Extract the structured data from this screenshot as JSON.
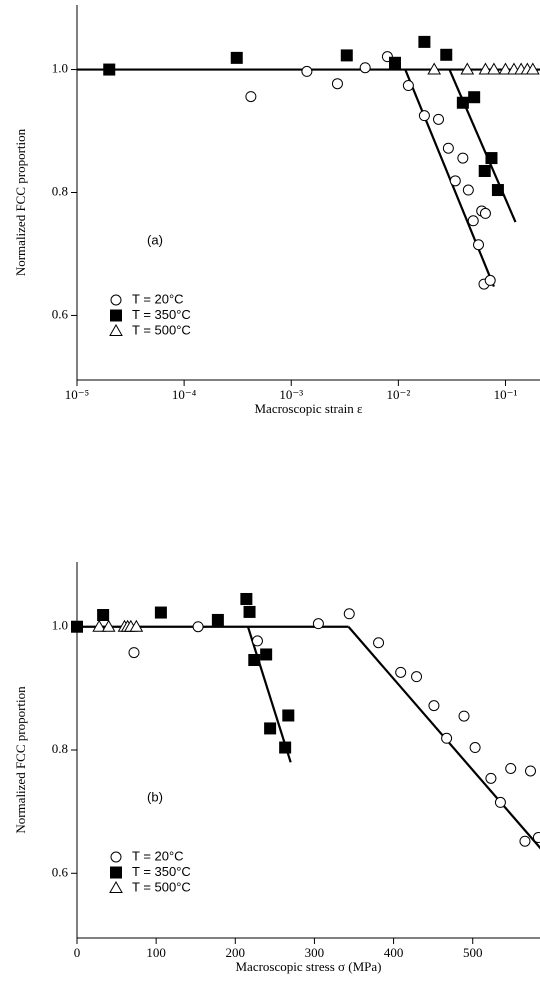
{
  "chart_data": [
    {
      "type": "scatter",
      "xscale": "log",
      "annotation": "(a)",
      "xlabel": "Macroscopic strain ε",
      "ylabel": "Normalized FCC proportion",
      "xlim": [
        1e-05,
        0.21
      ],
      "ylim": [
        0.495,
        1.105
      ],
      "xticks": [
        {
          "value": 1e-05,
          "label": "10⁻⁵"
        },
        {
          "value": 0.0001,
          "label": "10⁻⁴"
        },
        {
          "value": 0.001,
          "label": "10⁻³"
        },
        {
          "value": 0.01,
          "label": "10⁻²"
        },
        {
          "value": 0.1,
          "label": "10⁻¹"
        }
      ],
      "yticks": [
        0.6,
        0.8,
        {
          "value": 1.0,
          "label": "1.0"
        }
      ],
      "legend": "lower left",
      "series": [
        {
          "name": "T = 20°C",
          "marker": "circle",
          "color": "#000000",
          "fill": "#ffffff",
          "x": [
            0.00042,
            0.0014,
            0.0027,
            0.0049,
            0.0079,
            0.0124,
            0.0175,
            0.0237,
            0.0293,
            0.034,
            0.04,
            0.045,
            0.05,
            0.056,
            0.06,
            0.065,
            0.063,
            0.072
          ],
          "values": [
            0.956,
            0.997,
            0.977,
            1.003,
            1.021,
            0.974,
            0.925,
            0.919,
            0.872,
            0.819,
            0.856,
            0.804,
            0.754,
            0.715,
            0.77,
            0.766,
            0.651,
            0.657
          ]
        },
        {
          "name": "T = 350°C",
          "marker": "square",
          "color": "#000000",
          "fill": "#000000",
          "x": [
            2e-05,
            0.00031,
            0.0033,
            0.0093,
            0.0175,
            0.028,
            0.04,
            0.051,
            0.064,
            0.074,
            0.085
          ],
          "values": [
            1.0,
            1.019,
            1.023,
            1.011,
            1.045,
            1.024,
            0.946,
            0.955,
            0.835,
            0.856,
            0.804
          ]
        },
        {
          "name": "T = 500°C",
          "marker": "triangle",
          "color": "#000000",
          "fill": "#ffffff",
          "x": [
            0.0216,
            0.044,
            0.065,
            0.078,
            0.1,
            0.12,
            0.14,
            0.16,
            0.18
          ],
          "values": [
            1.0,
            1.0,
            1.0,
            1.0,
            1.0,
            1.0,
            1.0,
            1.0,
            1.0
          ]
        }
      ],
      "fits": [
        {
          "x": [
            1e-05,
            0.21
          ],
          "values": [
            1.0,
            1.0
          ]
        },
        {
          "x": [
            0.0116,
            0.078
          ],
          "values": [
            1.0,
            0.647
          ]
        },
        {
          "x": [
            0.03,
            0.124
          ],
          "values": [
            1.0,
            0.752
          ]
        }
      ]
    },
    {
      "type": "scatter",
      "xscale": "linear",
      "annotation": "(b)",
      "xlabel": "Macroscopic stress σ (MPa)",
      "ylabel": "Normalized FCC proportion",
      "xlim": [
        0,
        585
      ],
      "ylim": [
        0.495,
        1.105
      ],
      "xticks": [
        0,
        100,
        200,
        300,
        400,
        500
      ],
      "yticks": [
        0.6,
        0.8,
        {
          "value": 1.0,
          "label": "1.0"
        }
      ],
      "legend": "lower left",
      "series": [
        {
          "name": "T = 20°C",
          "marker": "circle",
          "color": "#000000",
          "fill": "#ffffff",
          "x": [
            72,
            153,
            228,
            305,
            344,
            381,
            409,
            429,
            451,
            467,
            489,
            503,
            523,
            535,
            548,
            573,
            566,
            583
          ],
          "values": [
            0.958,
            1.0,
            0.977,
            1.005,
            1.021,
            0.974,
            0.926,
            0.919,
            0.872,
            0.819,
            0.855,
            0.804,
            0.754,
            0.715,
            0.77,
            0.766,
            0.652,
            0.658
          ]
        },
        {
          "name": "T = 350°C",
          "marker": "square",
          "color": "#000000",
          "fill": "#000000",
          "x": [
            0,
            33,
            106,
            178,
            214,
            218,
            224,
            239,
            244,
            267,
            263
          ],
          "values": [
            1.0,
            1.019,
            1.023,
            1.011,
            1.045,
            1.024,
            0.946,
            0.955,
            0.835,
            0.856,
            0.804
          ]
        },
        {
          "name": "T = 500°C",
          "marker": "triangle",
          "color": "#000000",
          "fill": "#ffffff",
          "x": [
            28,
            40,
            60,
            64,
            68,
            75
          ],
          "values": [
            1.0,
            1.0,
            1.0,
            1.0,
            1.0,
            1.0
          ]
        }
      ],
      "fits": [
        {
          "x": [
            0,
            343
          ],
          "values": [
            1.0,
            1.0
          ]
        },
        {
          "x": [
            343,
            586
          ],
          "values": [
            1.0,
            0.64
          ]
        },
        {
          "x": [
            216,
            270
          ],
          "values": [
            1.0,
            0.78
          ]
        }
      ]
    }
  ]
}
